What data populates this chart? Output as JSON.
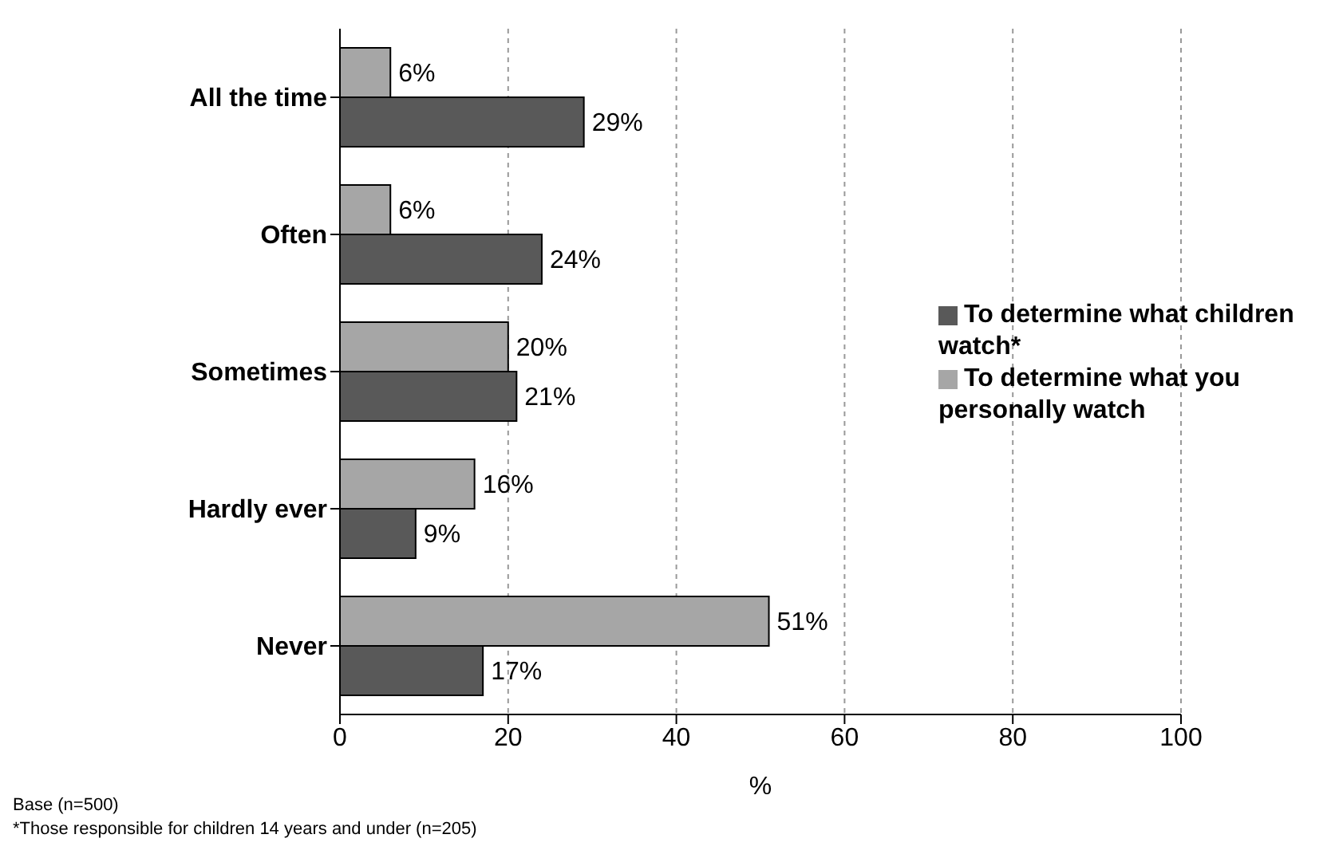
{
  "chart_data": {
    "type": "bar",
    "orientation": "horizontal",
    "categories": [
      "All the time",
      "Often",
      "Sometimes",
      "Hardly ever",
      "Never"
    ],
    "series": [
      {
        "name": "To determine what you personally watch",
        "color": "#a6a6a6",
        "values": [
          6,
          6,
          20,
          16,
          51
        ],
        "value_labels": [
          "6%",
          "6%",
          "20%",
          "16%",
          "51%"
        ]
      },
      {
        "name": "To determine what children watch*",
        "color": "#595959",
        "values": [
          29,
          24,
          21,
          9,
          17
        ],
        "value_labels": [
          "29%",
          "24%",
          "21%",
          "9%",
          "17%"
        ]
      }
    ],
    "xlabel": "%",
    "xlim": [
      0,
      100
    ],
    "xticks": [
      0,
      20,
      40,
      60,
      80,
      100
    ],
    "grid": "x",
    "legend": "right",
    "annotations": [
      "Base (n=500)",
      "*Those responsible for children 14 years and under (n=205)"
    ]
  }
}
